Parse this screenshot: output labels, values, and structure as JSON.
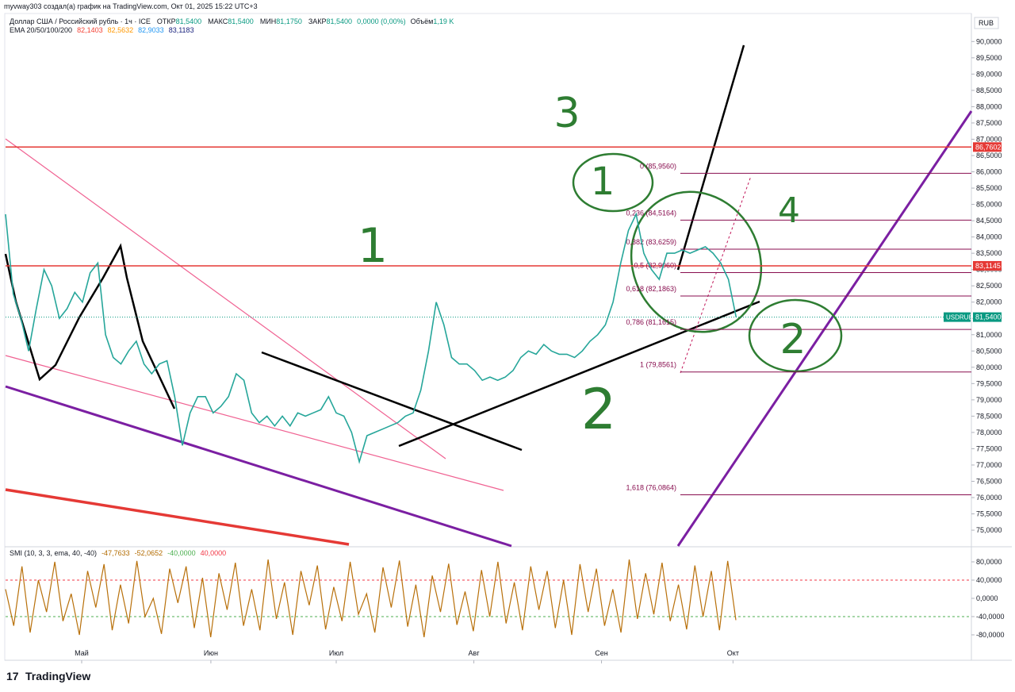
{
  "header": {
    "author_line": "myvway303 создал(а) график на TradingView.com, Окт 01, 2025 15:22 UTC+3",
    "symbol": "Доллар США / Российский рубль · 1ч · ICE",
    "ohlc": [
      {
        "label": "ОТКР",
        "value": "81,5400"
      },
      {
        "label": "МАКС",
        "value": "81,5400"
      },
      {
        "label": "МИН",
        "value": "81,1750"
      },
      {
        "label": "ЗАКР",
        "value": "81,5400"
      }
    ],
    "change": "0,0000 (0,00%)",
    "volume_label": "Объём",
    "volume": "1,19 K",
    "ema_label": "EMA 20/50/100/200",
    "ema_values": [
      {
        "text": "82,1403",
        "color": "#f44336"
      },
      {
        "text": "82,5632",
        "color": "#ff9800"
      },
      {
        "text": "82,9033",
        "color": "#2196f3"
      },
      {
        "text": "83,1183",
        "color": "#1a237e"
      }
    ]
  },
  "currency": "RUB",
  "chart_data": {
    "type": "line",
    "color": "#26a69a",
    "values": [
      84.7,
      82.25,
      81.5,
      80.5,
      81.8,
      83.0,
      82.5,
      81.5,
      81.8,
      82.3,
      82.0,
      82.9,
      83.2,
      81.0,
      80.3,
      80.1,
      80.5,
      80.8,
      80.1,
      79.8,
      80.1,
      80.2,
      79.1,
      77.6,
      78.6,
      79.1,
      79.1,
      78.6,
      78.8,
      79.1,
      79.8,
      79.6,
      78.6,
      78.3,
      78.5,
      78.2,
      78.5,
      78.2,
      78.6,
      78.5,
      78.6,
      78.7,
      79.1,
      78.6,
      78.5,
      78.0,
      77.1,
      77.9,
      78.0,
      78.1,
      78.2,
      78.3,
      78.5,
      78.6,
      79.3,
      80.5,
      82.0,
      81.3,
      80.3,
      80.1,
      80.1,
      79.9,
      79.6,
      79.7,
      79.6,
      79.7,
      79.9,
      80.3,
      80.5,
      80.4,
      80.7,
      80.5,
      80.4,
      80.4,
      80.3,
      80.5,
      80.8,
      81.0,
      81.3,
      82.0,
      83.2,
      84.2,
      84.7,
      83.5,
      83.0,
      82.7,
      83.5,
      83.5,
      83.6,
      83.5,
      83.6,
      83.7,
      83.5,
      83.2,
      82.7,
      81.54
    ],
    "xlim": [
      0,
      125.6
    ],
    "ylim": [
      74.49,
      90.86
    ],
    "xticks": [
      {
        "value": 9.9,
        "label": "Май"
      },
      {
        "value": 26.7,
        "label": "Июн"
      },
      {
        "value": 43.0,
        "label": "Июл"
      },
      {
        "value": 60.9,
        "label": "Авг"
      },
      {
        "value": 77.5,
        "label": "Сен"
      },
      {
        "value": 94.6,
        "label": "Окт"
      }
    ],
    "yticks": [
      {
        "value": 75,
        "label": "75,0000"
      },
      {
        "value": 75.5,
        "label": "75,5000"
      },
      {
        "value": 76,
        "label": "76,0000"
      },
      {
        "value": 76.5,
        "label": "76,5000"
      },
      {
        "value": 77,
        "label": "77,0000"
      },
      {
        "value": 77.5,
        "label": "77,5000"
      },
      {
        "value": 78,
        "label": "78,0000"
      },
      {
        "value": 78.5,
        "label": "78,5000"
      },
      {
        "value": 79,
        "label": "79,0000"
      },
      {
        "value": 79.5,
        "label": "79,5000"
      },
      {
        "value": 80,
        "label": "80,0000"
      },
      {
        "value": 80.5,
        "label": "80,5000"
      },
      {
        "value": 81,
        "label": "81,0000"
      },
      {
        "value": 81.5,
        "label": "81,5000"
      },
      {
        "value": 82,
        "label": "82,0000"
      },
      {
        "value": 82.5,
        "label": "82,5000"
      },
      {
        "value": 83,
        "label": "83,0000"
      },
      {
        "value": 83.5,
        "label": "83,5000"
      },
      {
        "value": 84,
        "label": "84,0000"
      },
      {
        "value": 84.5,
        "label": "84,5000"
      },
      {
        "value": 85,
        "label": "85,0000"
      },
      {
        "value": 85.5,
        "label": "85,5000"
      },
      {
        "value": 86,
        "label": "86,0000"
      },
      {
        "value": 86.5,
        "label": "86,5000"
      },
      {
        "value": 87,
        "label": "87,0000"
      },
      {
        "value": 87.5,
        "label": "87,5000"
      },
      {
        "value": 88,
        "label": "88,0000"
      },
      {
        "value": 88.5,
        "label": "88,5000"
      },
      {
        "value": 89,
        "label": "89,0000"
      },
      {
        "value": 89.5,
        "label": "89,5000"
      },
      {
        "value": 90,
        "label": "90,0000"
      }
    ],
    "price_tag": {
      "name": "USDRUB",
      "value": 81.54,
      "label": "81,5400"
    },
    "levels": [
      {
        "value": 86.7602,
        "label": "86,7602"
      },
      {
        "value": 83.1145,
        "label": "83,1145"
      }
    ],
    "fib": [
      {
        "value": 85.956,
        "label": "0 (85,9560)"
      },
      {
        "value": 84.5164,
        "label": "0,236 (84,5164)"
      },
      {
        "value": 83.6259,
        "label": "0,382 (83,6259)"
      },
      {
        "value": 82.906,
        "label": "0,5 (82,9060)"
      },
      {
        "value": 82.1863,
        "label": "0,618 (82,1863)"
      },
      {
        "value": 81.1615,
        "label": "0,786 (81,1615)"
      },
      {
        "value": 79.8561,
        "label": "1 (79,8561)"
      },
      {
        "value": 76.0864,
        "label": "1,618 (76,0864)"
      }
    ],
    "annotations": [
      "3",
      "1",
      "1",
      "4",
      "2",
      "2"
    ]
  },
  "indicator": {
    "title": "SMI (10, 3, 3, ema, 40, -40)",
    "readouts": [
      {
        "text": "-47,7633",
        "color": "#b26b00"
      },
      {
        "text": "-52,0652",
        "color": "#b26b00"
      },
      {
        "text": "-40,0000",
        "color": "#4caf50"
      },
      {
        "text": "40,0000",
        "color": "#f23645"
      }
    ],
    "color": "#b8700a",
    "ylim": [
      -135.7,
      111.3
    ],
    "yticks": [
      {
        "value": 80,
        "label": "80,0000"
      },
      {
        "value": 40,
        "label": "40,0000"
      },
      {
        "value": 0,
        "label": "0,0000"
      },
      {
        "value": -40,
        "label": "-40,0000"
      },
      {
        "value": -80,
        "label": "-80,0000"
      }
    ],
    "bands": [
      40,
      -40
    ],
    "values": [
      20,
      -60,
      70,
      -75,
      40,
      -30,
      80,
      -50,
      10,
      -80,
      60,
      -20,
      75,
      -70,
      30,
      -55,
      82,
      -40,
      0,
      -78,
      65,
      -10,
      70,
      -65,
      45,
      -85,
      55,
      -25,
      78,
      -60,
      20,
      -70,
      85,
      -45,
      35,
      -80,
      60,
      -15,
      72,
      -68,
      25,
      -50,
      80,
      -35,
      10,
      -75,
      68,
      -20,
      83,
      -62,
      30,
      -85,
      50,
      -30,
      76,
      -58,
      15,
      -72,
      62,
      -40,
      80,
      -55,
      35,
      -70,
      70,
      -25,
      60,
      -65,
      40,
      -80,
      75,
      -30,
      65,
      -60,
      20,
      -75,
      85,
      -45,
      55,
      -35,
      78,
      -50,
      30,
      -68,
      72,
      -40,
      60,
      -70,
      82,
      -47.7633
    ]
  },
  "footer": {
    "brand": "TradingView"
  }
}
